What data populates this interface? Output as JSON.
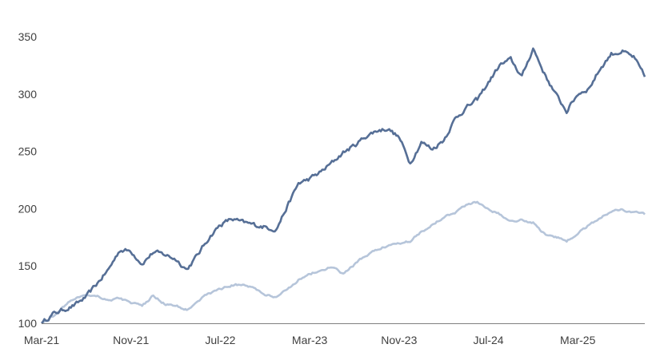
{
  "chart_data": {
    "type": "line",
    "title": "",
    "xlabel": "",
    "ylabel": "",
    "ylim": [
      100,
      350
    ],
    "yticks": [
      100,
      150,
      200,
      250,
      300,
      350
    ],
    "xticks": [
      "Mar-21",
      "Nov-21",
      "Jul-22",
      "Mar-23",
      "Nov-23",
      "Jul-24",
      "Mar-25"
    ],
    "x_unit": "month",
    "x": [
      "Mar-21",
      "Apr-21",
      "May-21",
      "Jun-21",
      "Jul-21",
      "Aug-21",
      "Sep-21",
      "Oct-21",
      "Nov-21",
      "Dec-21",
      "Jan-22",
      "Feb-22",
      "Mar-22",
      "Apr-22",
      "May-22",
      "Jun-22",
      "Jul-22",
      "Aug-22",
      "Sep-22",
      "Oct-22",
      "Nov-22",
      "Dec-22",
      "Jan-23",
      "Feb-23",
      "Mar-23",
      "Apr-23",
      "May-23",
      "Jun-23",
      "Jul-23",
      "Aug-23",
      "Sep-23",
      "Oct-23",
      "Nov-23",
      "Dec-23",
      "Jan-24",
      "Feb-24",
      "Mar-24",
      "Apr-24",
      "May-24",
      "Jun-24",
      "Jul-24",
      "Aug-24",
      "Sep-24",
      "Oct-24",
      "Nov-24",
      "Dec-24",
      "Jan-25",
      "Feb-25",
      "Mar-25",
      "Apr-25",
      "May-25",
      "Jun-25",
      "Jul-25",
      "Aug-25",
      "Sep-25"
    ],
    "grid": false,
    "legend": "none",
    "series": [
      {
        "color": "#566f96",
        "values": [
          100,
          108,
          112,
          116,
          123,
          135,
          147,
          164,
          163,
          152,
          162,
          160,
          156,
          147,
          160,
          175,
          186,
          191,
          188,
          186,
          184,
          182,
          202,
          222,
          226,
          232,
          240,
          249,
          255,
          263,
          268,
          270,
          262,
          240,
          258,
          252,
          260,
          278,
          288,
          295,
          310,
          325,
          330,
          315,
          340,
          318,
          300,
          285,
          300,
          305,
          322,
          335,
          337,
          332,
          315
        ]
      },
      {
        "color": "#b6c5da",
        "values": [
          100,
          106,
          115,
          122,
          125,
          124,
          120,
          122,
          118,
          115,
          124,
          117,
          115,
          112,
          120,
          126,
          130,
          133,
          134,
          131,
          125,
          122,
          130,
          138,
          143,
          146,
          149,
          143,
          151,
          159,
          164,
          168,
          170,
          172,
          180,
          186,
          193,
          197,
          203,
          206,
          200,
          195,
          190,
          190,
          188,
          178,
          175,
          172,
          178,
          186,
          192,
          198,
          199,
          197,
          195
        ]
      }
    ]
  }
}
